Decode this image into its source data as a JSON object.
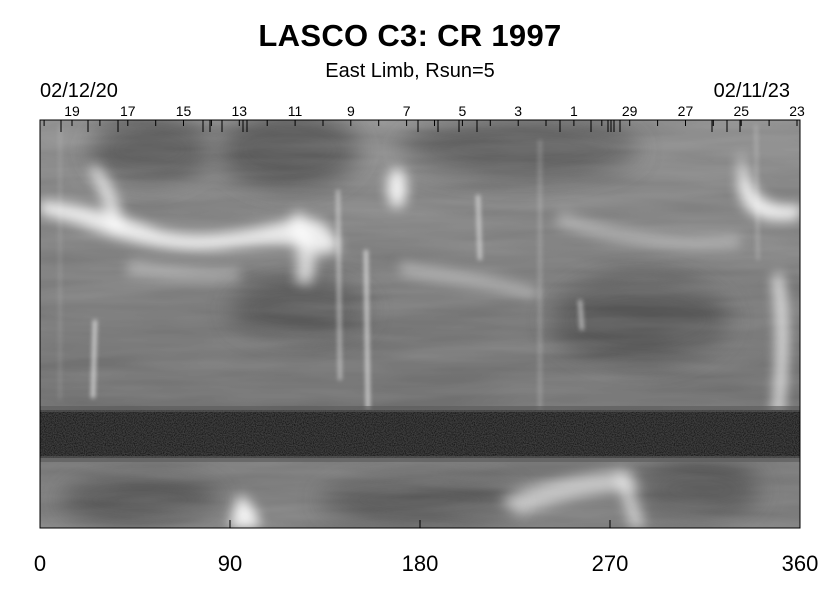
{
  "title": "LASCO C3: CR 1997",
  "subtitle": "East Limb, Rsun=5",
  "date_left": "02/12/20",
  "date_right": "02/11/23",
  "chart_data": {
    "type": "heatmap",
    "title": "LASCO C3: CR 1997",
    "subtitle": "East Limb, Rsun=5",
    "xlim": [
      0,
      360
    ],
    "x_ticks": [
      0,
      90,
      180,
      270,
      360
    ],
    "top_axis": {
      "start_label": "02/12/20",
      "end_label": "02/11/23",
      "day_labels": [
        "19",
        "17",
        "15",
        "13",
        "11",
        "9",
        "7",
        "5",
        "3",
        "1",
        "29",
        "27",
        "25",
        "23"
      ]
    },
    "colormap": "grayscale",
    "noise_band": true,
    "bright_streamers": "white bright features at upper-left, around 90-130, around 160, and at right edge near 340-360"
  }
}
